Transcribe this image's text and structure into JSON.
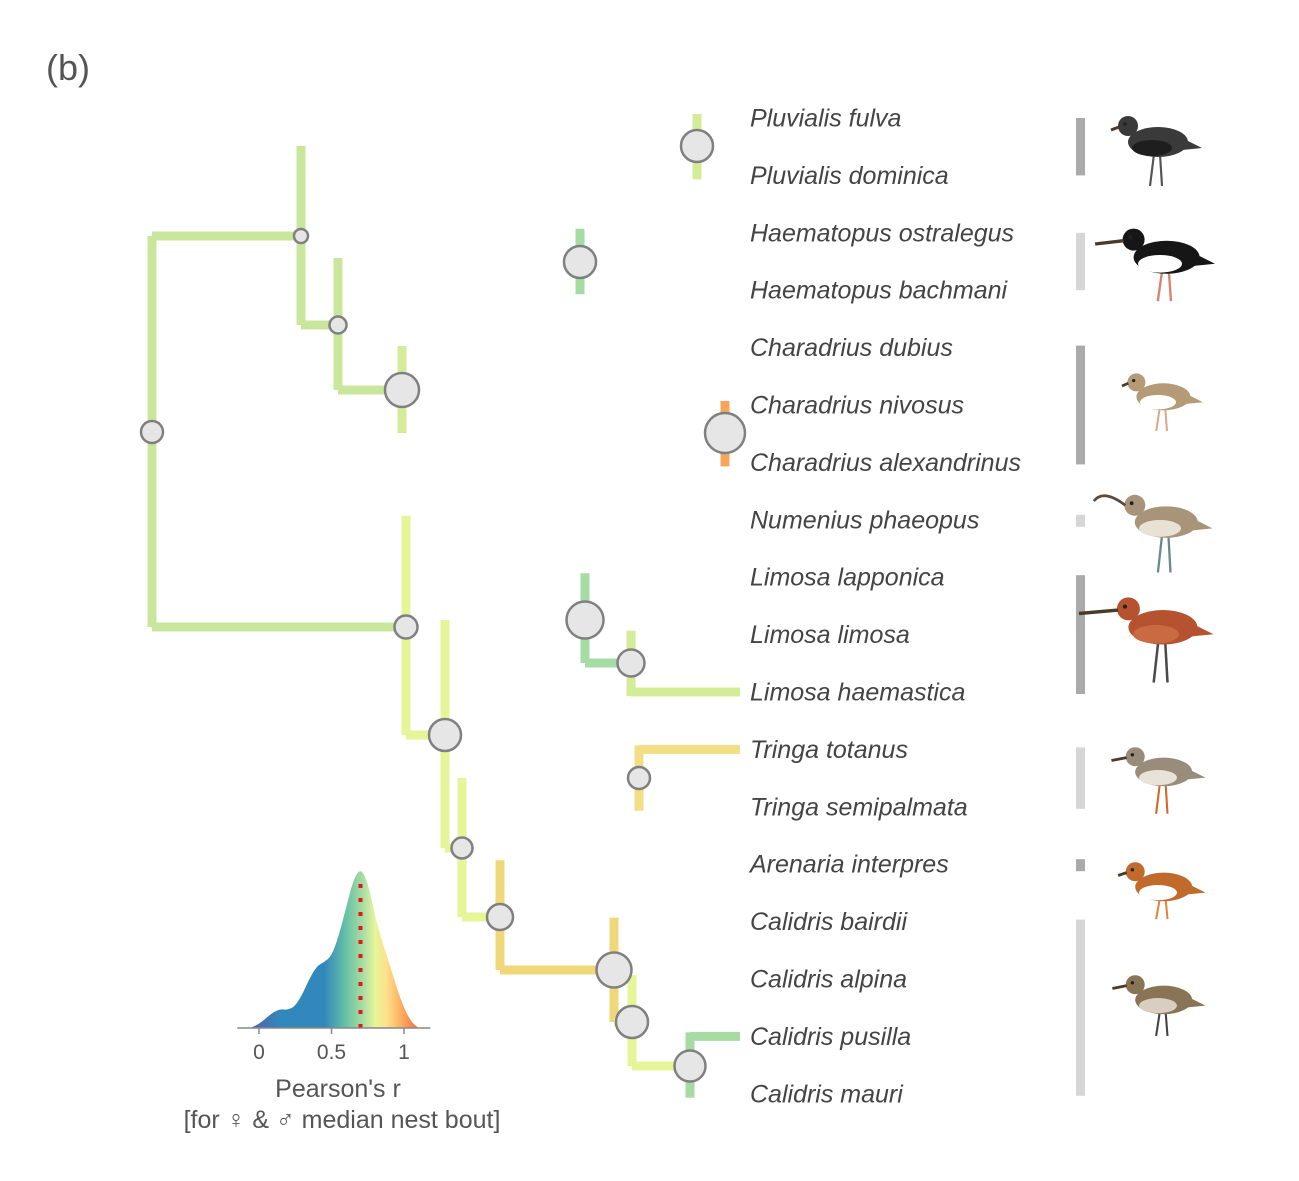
{
  "panel_label": "(b)",
  "taxa": [
    {
      "name": "Pluvialis fulva"
    },
    {
      "name": "Pluvialis dominica"
    },
    {
      "name": "Haematopus ostralegus"
    },
    {
      "name": "Haematopus bachmani"
    },
    {
      "name": "Charadrius dubius"
    },
    {
      "name": "Charadrius nivosus"
    },
    {
      "name": "Charadrius alexandrinus"
    },
    {
      "name": "Numenius phaeopus"
    },
    {
      "name": "Limosa lapponica"
    },
    {
      "name": "Limosa limosa"
    },
    {
      "name": "Limosa haemastica"
    },
    {
      "name": "Tringa totanus"
    },
    {
      "name": "Tringa semipalmata"
    },
    {
      "name": "Arenaria interpres"
    },
    {
      "name": "Calidris bairdii"
    },
    {
      "name": "Calidris alpina"
    },
    {
      "name": "Calidris pusilla"
    },
    {
      "name": "Calidris mauri"
    }
  ],
  "genus_bars": [
    {
      "genus": "Pluvialis",
      "from": 0,
      "to": 1,
      "shade": "#aaaaaa"
    },
    {
      "genus": "Haematopus",
      "from": 2,
      "to": 3,
      "shade": "#d6d6d6"
    },
    {
      "genus": "Charadrius",
      "from": 4,
      "to": 6,
      "shade": "#aaaaaa"
    },
    {
      "genus": "Numenius",
      "from": 7,
      "to": 7,
      "shade": "#d6d6d6"
    },
    {
      "genus": "Limosa",
      "from": 8,
      "to": 10,
      "shade": "#aaaaaa"
    },
    {
      "genus": "Tringa",
      "from": 11,
      "to": 12,
      "shade": "#d6d6d6"
    },
    {
      "genus": "Arenaria",
      "from": 13,
      "to": 13,
      "shade": "#aaaaaa"
    },
    {
      "genus": "Calidris",
      "from": 14,
      "to": 17,
      "shade": "#d6d6d6"
    }
  ],
  "bird_icons": [
    "plover-icon",
    "oystercatcher-icon",
    "small-plover-icon",
    "whimbrel-icon",
    "godwit-icon",
    "redshank-icon",
    "turnstone-icon",
    "sandpiper-icon"
  ],
  "color_scale": [
    "#5e4fa2",
    "#3288bd",
    "#66c2a5",
    "#abdda4",
    "#e6f598",
    "#fee08b",
    "#fdae61",
    "#f46d43",
    "#d53e4f",
    "#9e0142"
  ],
  "density": {
    "axis_title_line1": "Pearson's r",
    "axis_title_line2": "[for ♀ & ♂ median nest bout]",
    "ticks": [
      {
        "value": 0,
        "label": "0"
      },
      {
        "value": 0.5,
        "label": "0.5"
      },
      {
        "value": 1,
        "label": "1"
      }
    ],
    "x_range": [
      -0.15,
      1.25
    ],
    "median_r": 0.7,
    "median_line_color": "#e8141b"
  }
}
